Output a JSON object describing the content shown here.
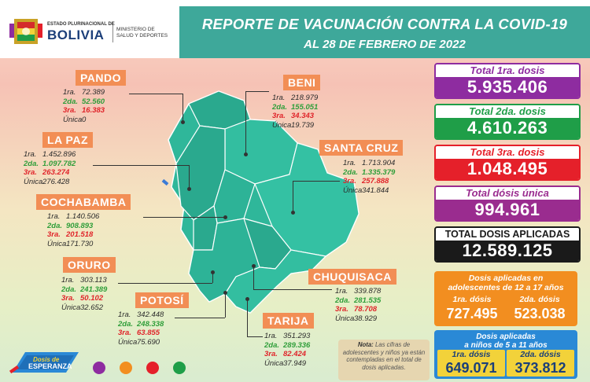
{
  "header": {
    "state_line": "ESTADO PLURINACIONAL DE",
    "country": "BOLIVIA",
    "ministry_line1": "MINISTERIO DE",
    "ministry_line2": "SALUD Y DEPORTES",
    "title": "REPORTE DE VACUNACIÓN CONTRA LA COVID-19",
    "subtitle": "AL 28 DE FEBRERO DE 2022"
  },
  "labels": {
    "d1": "1ra.",
    "d2": "2da.",
    "d3": "3ra.",
    "du": "Única"
  },
  "departments": {
    "pando": {
      "name": "PANDO",
      "d1": "72.389",
      "d2": "52.560",
      "d3": "16.383",
      "du": "0"
    },
    "beni": {
      "name": "BENI",
      "d1": "218.979",
      "d2": "155.051",
      "d3": "34.343",
      "du": "19.739"
    },
    "la_paz": {
      "name": "LA PAZ",
      "d1": "1.452.896",
      "d2": "1.097.782",
      "d3": "263.274",
      "du": "276.428"
    },
    "santa_cruz": {
      "name": "SANTA CRUZ",
      "d1": "1.713.904",
      "d2": "1.335.379",
      "d3": "257.888",
      "du": "341.844"
    },
    "cochabamba": {
      "name": "COCHABAMBA",
      "d1": "1.140.506",
      "d2": "908.893",
      "d3": "201.518",
      "du": "171.730"
    },
    "oruro": {
      "name": "ORURO",
      "d1": "303.113",
      "d2": "241.389",
      "d3": "50.102",
      "du": "32.652"
    },
    "chuquisaca": {
      "name": "CHUQUISACA",
      "d1": "339.878",
      "d2": "281.535",
      "d3": "78.708",
      "du": "38.929"
    },
    "potosi": {
      "name": "POTOSÍ",
      "d1": "342.448",
      "d2": "248.338",
      "d3": "63.855",
      "du": "75.690"
    },
    "tarija": {
      "name": "TARIJA",
      "d1": "351.293",
      "d2": "289.336",
      "d3": "82.424",
      "du": "37.949"
    }
  },
  "totals": {
    "first": {
      "label": "Total 1ra. dosis",
      "value": "5.935.406"
    },
    "second": {
      "label": "Total 2da. dosis",
      "value": "4.610.263"
    },
    "third": {
      "label": "Total 3ra. dosis",
      "value": "1.048.495"
    },
    "single": {
      "label": "Total dósis única",
      "value": "994.961"
    },
    "applied": {
      "label": "TOTAL DOSIS APLICADAS",
      "value": "12.589.125"
    }
  },
  "adolescents": {
    "title_line1": "Dosis aplicadas en",
    "title_line2": "adolescentes de 12 a 17 años",
    "first_label": "1ra. dósis",
    "first_value": "727.495",
    "second_label": "2da. dósis",
    "second_value": "523.038"
  },
  "children": {
    "title_line1": "Dosis aplicadas",
    "title_line2": "a niños de 5 a 11 años",
    "first_label": "1ra. dósis",
    "first_value": "649.071",
    "second_label": "2da. dósis",
    "second_value": "373.812"
  },
  "note": {
    "lead": "Nota:",
    "text": "Las cifras de adolescentes y niños ya están contempladas en el total de dosis aplicadas."
  },
  "brand": {
    "line1": "Dosis de",
    "line2": "ESPERANZA"
  },
  "colors": {
    "banner": "#3ea89a",
    "dept_title": "#f28e55",
    "map": "#2fb79a",
    "dose2": "#2f9e3a",
    "dose3": "#e0242a"
  }
}
